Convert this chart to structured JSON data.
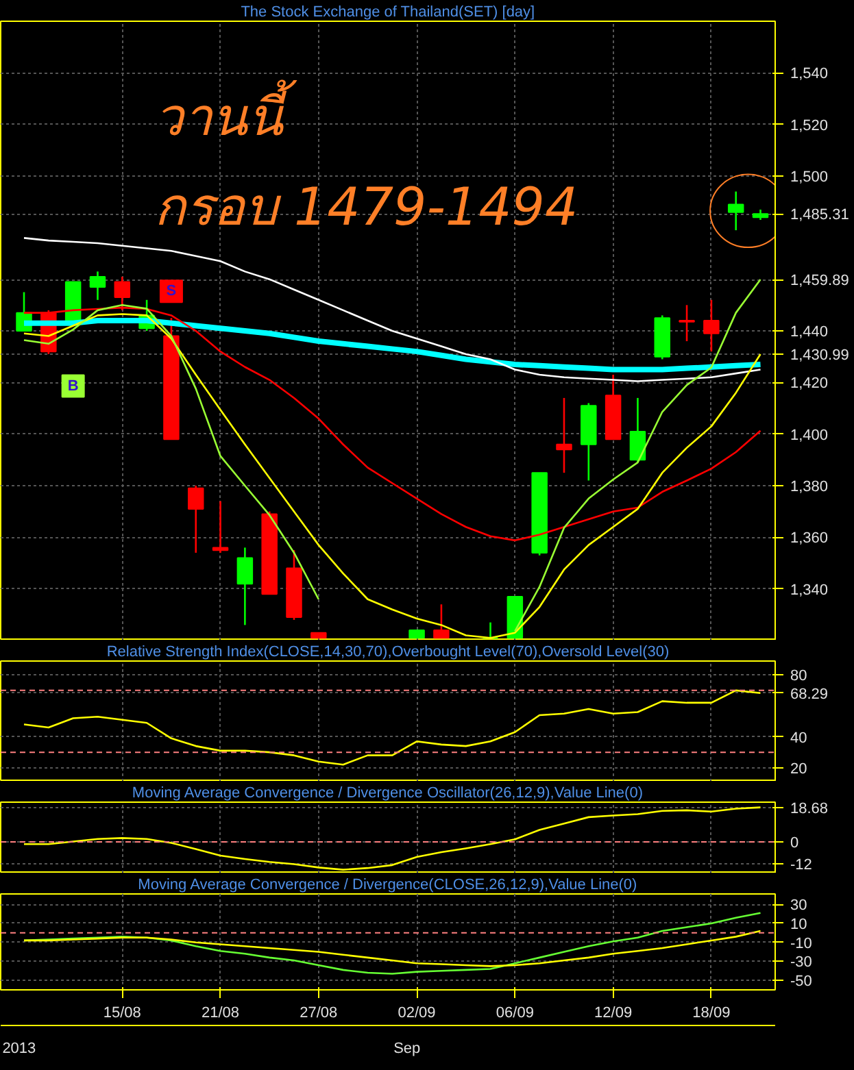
{
  "chart_data": [
    {
      "type": "candlestick",
      "title": "The Stock Exchange of Thailand(SET) [day]",
      "categories": [
        null,
        null,
        null,
        null,
        null,
        null,
        null,
        null,
        null,
        null,
        null,
        null,
        null,
        null,
        null,
        null,
        null,
        null,
        null,
        null,
        null,
        null,
        null,
        null,
        null,
        null,
        null,
        null,
        null,
        null,
        null
      ],
      "ohlc": [
        [
          1440,
          1455,
          1440,
          1447
        ],
        [
          1447,
          1448,
          1431,
          1432
        ],
        [
          1443,
          1459,
          1443,
          1459
        ],
        [
          1457,
          1463,
          1452,
          1461
        ],
        [
          1459,
          1461,
          1448,
          1453
        ],
        [
          1441,
          1452,
          1440,
          1446
        ],
        [
          1438,
          1445,
          1398,
          1398
        ],
        [
          1379,
          1380,
          1354,
          1371
        ],
        [
          1356,
          1374,
          1354,
          1355
        ],
        [
          1342,
          1356,
          1326,
          1352
        ],
        [
          1369,
          1370,
          1338,
          1338
        ],
        [
          1348,
          1355,
          1328,
          1329
        ],
        [
          1323,
          1323,
          1321,
          1321
        ],
        null,
        null,
        null,
        [
          1321,
          1324,
          1321,
          1324
        ],
        [
          1324,
          1334,
          1321,
          1321
        ],
        null,
        [
          1321,
          1327,
          1321,
          1321
        ],
        [
          1321,
          1337,
          1321,
          1337
        ],
        [
          1354,
          1385,
          1353,
          1385
        ],
        [
          1396,
          1414,
          1385,
          1394
        ],
        [
          1396,
          1412,
          1382,
          1411
        ],
        [
          1415,
          1423,
          1398,
          1398
        ],
        [
          1390,
          1414,
          1389,
          1401
        ],
        [
          1430,
          1446,
          1429,
          1445
        ],
        [
          1444,
          1450,
          1436,
          1443.5
        ],
        [
          1444,
          1452,
          1432,
          1439
        ],
        [
          1486,
          1494,
          1479,
          1489
        ],
        [
          1484,
          1487,
          1483,
          1485.31
        ]
      ],
      "colors": [
        "#00ff00",
        "#ff0000",
        "#00ff00",
        "#00ff00",
        "#ff0000",
        "#00ff00",
        "#ff0000",
        "#ff0000",
        "#ff0000",
        "#00ff00",
        "#ff0000",
        "#ff0000",
        "#ff0000",
        null,
        null,
        null,
        "#00ff00",
        "#ff0000",
        null,
        "#00ff00",
        "#00ff00",
        "#00ff00",
        "#ff0000",
        "#00ff00",
        "#ff0000",
        "#00ff00",
        "#00ff00",
        "#ff0000",
        "#ff0000",
        "#00ff00",
        "#00ff00"
      ],
      "series": [
        {
          "type": "line",
          "color": "#00ffff",
          "values": [
            1443,
            1443,
            1443,
            1444,
            1444,
            1444,
            1443,
            1442,
            1441,
            1440,
            1439,
            1437.5,
            1436,
            1435,
            1434,
            1433,
            1432,
            1430.5,
            1429,
            1428,
            1427,
            1426.5,
            1426,
            1425.5,
            1425,
            1425,
            1425,
            1425.5,
            1426,
            1426.5,
            1427
          ]
        },
        {
          "type": "line",
          "color": "#ffffff",
          "values": [
            1476,
            1475,
            1474.5,
            1474,
            1473,
            1472,
            1471,
            1469,
            1467,
            1463,
            1460,
            1456,
            1452,
            1448,
            1444,
            1440,
            1437,
            1434,
            1431,
            1429,
            1425,
            1423,
            1422,
            1421.5,
            1421,
            1420.5,
            1421,
            1421.5,
            1422,
            1423.5,
            1425
          ]
        },
        {
          "type": "line",
          "color": "#ff0000",
          "values": [
            1447,
            1447,
            1448,
            1448.5,
            1449,
            1448.5,
            1446,
            1440,
            1432,
            1426,
            1421,
            1414,
            1406,
            1396,
            1387,
            1381,
            1375,
            1369,
            1364,
            1360.4,
            1358.8,
            1361,
            1364,
            1367,
            1370,
            1371.5,
            1377.6,
            1382,
            1386.6,
            1393,
            1401.3
          ]
        },
        {
          "type": "line",
          "color": "#ffff00",
          "values": [
            1439,
            1438,
            1442,
            1446,
            1446.5,
            1446,
            1437,
            1423,
            1409.4,
            1396,
            1383,
            1370,
            1357,
            1346,
            1336,
            1332,
            1328.5,
            1326,
            1322,
            1321,
            1323,
            1333,
            1347.5,
            1357,
            1364,
            1371,
            1385,
            1394.7,
            1403,
            1416,
            1430.99
          ]
        },
        {
          "type": "line",
          "color": "#99ff33",
          "values": [
            1436.4,
            1435,
            1440.5,
            1448,
            1450,
            1448.6,
            1438,
            1417.6,
            1391.5,
            1380,
            1368.6,
            1354,
            1336,
            null,
            null,
            null,
            null,
            null,
            null,
            null,
            1323.6,
            1340.8,
            1363.7,
            1375,
            1382.4,
            1389,
            1408.6,
            1419,
            1425.8,
            1447,
            1459.89
          ]
        },
        {
          "type": "scatter",
          "marker": "square",
          "color": "#99ff33",
          "values": [
            null,
            null,
            1418.6,
            null,
            null,
            null,
            null,
            null,
            null,
            null,
            null,
            null,
            null,
            null,
            null,
            null,
            null,
            null,
            null,
            null,
            null,
            null,
            null,
            null,
            null,
            null,
            null,
            null,
            null,
            null,
            null
          ],
          "value_labels": [
            null,
            null,
            "B",
            null,
            null,
            null,
            null,
            null,
            null,
            null,
            null,
            null,
            null,
            null,
            null,
            null,
            null,
            null,
            null,
            null,
            null,
            null,
            null,
            null,
            null,
            null,
            null,
            null,
            null,
            null,
            null
          ]
        },
        {
          "type": "scatter",
          "marker": "square",
          "color": "#ff0000",
          "values": [
            null,
            null,
            null,
            null,
            null,
            null,
            1455.3,
            null,
            null,
            null,
            null,
            null,
            null,
            null,
            null,
            null,
            null,
            null,
            null,
            null,
            null,
            null,
            null,
            null,
            null,
            null,
            null,
            null,
            null,
            null,
            null
          ],
          "value_labels": [
            null,
            null,
            null,
            null,
            null,
            null,
            "S",
            null,
            null,
            null,
            null,
            null,
            null,
            null,
            null,
            null,
            null,
            null,
            null,
            null,
            null,
            null,
            null,
            null,
            null,
            null,
            null,
            null,
            null,
            null,
            null
          ]
        }
      ],
      "ylim": [
        1320,
        1560
      ],
      "yticks": [
        {
          "value": 1340,
          "label": "1,340"
        },
        {
          "value": 1360,
          "label": "1,360"
        },
        {
          "value": 1380,
          "label": "1,380"
        },
        {
          "value": 1400,
          "label": "1,400"
        },
        {
          "value": 1420,
          "label": "1,420"
        },
        {
          "value": 1440,
          "label": "1,440"
        },
        {
          "value": 1430.99,
          "label": "1,430.99"
        },
        {
          "value": 1459.89,
          "label": "1,459.89"
        },
        {
          "value": 1485.31,
          "label": "1,485.31"
        },
        {
          "value": 1500,
          "label": "1,500"
        },
        {
          "value": 1520,
          "label": "1,520"
        },
        {
          "value": 1540,
          "label": "1,540"
        }
      ],
      "grid": true,
      "tick_labels": "y",
      "annotations": [
        "วานนี้",
        "กรอบ 1479-1494"
      ]
    },
    {
      "type": "line",
      "title": "Relative Strength Index(CLOSE,14,30,70),Overbought Level(70),Oversold Level(30)",
      "categories": [
        null,
        null,
        null,
        null,
        null,
        null,
        null,
        null,
        null,
        null,
        null,
        null,
        null,
        null,
        null,
        null,
        null,
        null,
        null,
        null,
        null,
        null,
        null,
        null,
        null,
        null,
        null,
        null,
        null,
        null,
        null
      ],
      "series": [
        {
          "color": "#ffff00",
          "values": [
            48,
            46,
            52,
            53,
            51,
            49,
            39,
            34,
            31,
            31,
            30,
            28,
            24,
            22,
            28,
            28,
            37,
            35,
            34,
            37,
            43,
            54,
            55,
            58,
            55,
            56,
            63,
            62,
            62,
            70,
            68.29
          ]
        }
      ],
      "ylim": [
        11,
        89
      ],
      "yticks": [
        20,
        40,
        {
          "value": 68.29,
          "label": "68.29"
        },
        80
      ],
      "ref_lines": [
        {
          "axis": "y",
          "value": 70,
          "color": "#ff8080",
          "line_style": "dashed"
        },
        {
          "axis": "y",
          "value": 30,
          "color": "#ff8080",
          "line_style": "dashed"
        }
      ],
      "grid": true,
      "tick_labels": "y"
    },
    {
      "type": "line",
      "title": "Moving Average Convergence / Divergence Oscillator(26,12,9),Value Line(0)",
      "categories": [
        null,
        null,
        null,
        null,
        null,
        null,
        null,
        null,
        null,
        null,
        null,
        null,
        null,
        null,
        null,
        null,
        null,
        null,
        null,
        null,
        null,
        null,
        null,
        null,
        null,
        null,
        null,
        null,
        null,
        null,
        null
      ],
      "series": [
        {
          "color": "#ffff00",
          "values": [
            -1.2,
            -1.2,
            0.2,
            1.6,
            2.1,
            1.6,
            -0.5,
            -3.9,
            -7.4,
            -9.2,
            -10.8,
            -12,
            -13.8,
            -15,
            -14.1,
            -12.5,
            -8.1,
            -5.5,
            -3.5,
            -1.2,
            1.4,
            6.5,
            9.9,
            13.4,
            14.3,
            15,
            16.8,
            17.1,
            16.4,
            18,
            18.68
          ]
        }
      ],
      "ylim": [
        -17,
        21.5
      ],
      "yticks": [
        -12,
        0,
        {
          "value": 18.68,
          "label": "18.68"
        }
      ],
      "ref_lines": [
        {
          "axis": "y",
          "value": 0,
          "color": "#ff8080",
          "line_style": "dashed"
        }
      ],
      "grid": true,
      "tick_labels": "y"
    },
    {
      "type": "line",
      "title": "Moving Average Convergence / Divergence(CLOSE,26,12,9),Value Line(0)",
      "categories": [
        null,
        null,
        null,
        null,
        "15/08",
        null,
        null,
        null,
        "21/08",
        null,
        null,
        null,
        "27/08",
        null,
        null,
        null,
        "02/09",
        null,
        null,
        null,
        "06/09",
        null,
        null,
        null,
        "12/09",
        null,
        null,
        null,
        "18/09",
        null,
        null
      ],
      "series": [
        {
          "color": "#66ff33",
          "values": [
            -8,
            -7,
            -6,
            -5,
            -4,
            -5,
            -8,
            -14,
            -19,
            -22,
            -26,
            -29,
            -34,
            -39,
            -42,
            -43,
            -41,
            -40,
            -39,
            -38,
            -32,
            -26,
            -20,
            -14,
            -9,
            -5,
            2,
            6,
            10,
            16,
            21
          ]
        },
        {
          "color": "#ffff00",
          "values": [
            -8,
            -8,
            -7,
            -6,
            -5,
            -5,
            -7,
            -10,
            -12,
            -14,
            -16,
            -18,
            -20,
            -23,
            -26,
            -29,
            -32,
            -33,
            -34,
            -35,
            -34,
            -32,
            -29,
            -26,
            -22,
            -19,
            -16,
            -12,
            -8,
            -4,
            2
          ]
        }
      ],
      "ylim": [
        -60,
        41
      ],
      "yticks": [
        -50,
        -30,
        -10,
        10,
        30
      ],
      "ref_lines": [
        {
          "axis": "y",
          "value": 0,
          "color": "#ff8080",
          "line_style": "dashed"
        }
      ],
      "grid": true,
      "annotations": [
        "2013",
        "Sep"
      ]
    }
  ]
}
